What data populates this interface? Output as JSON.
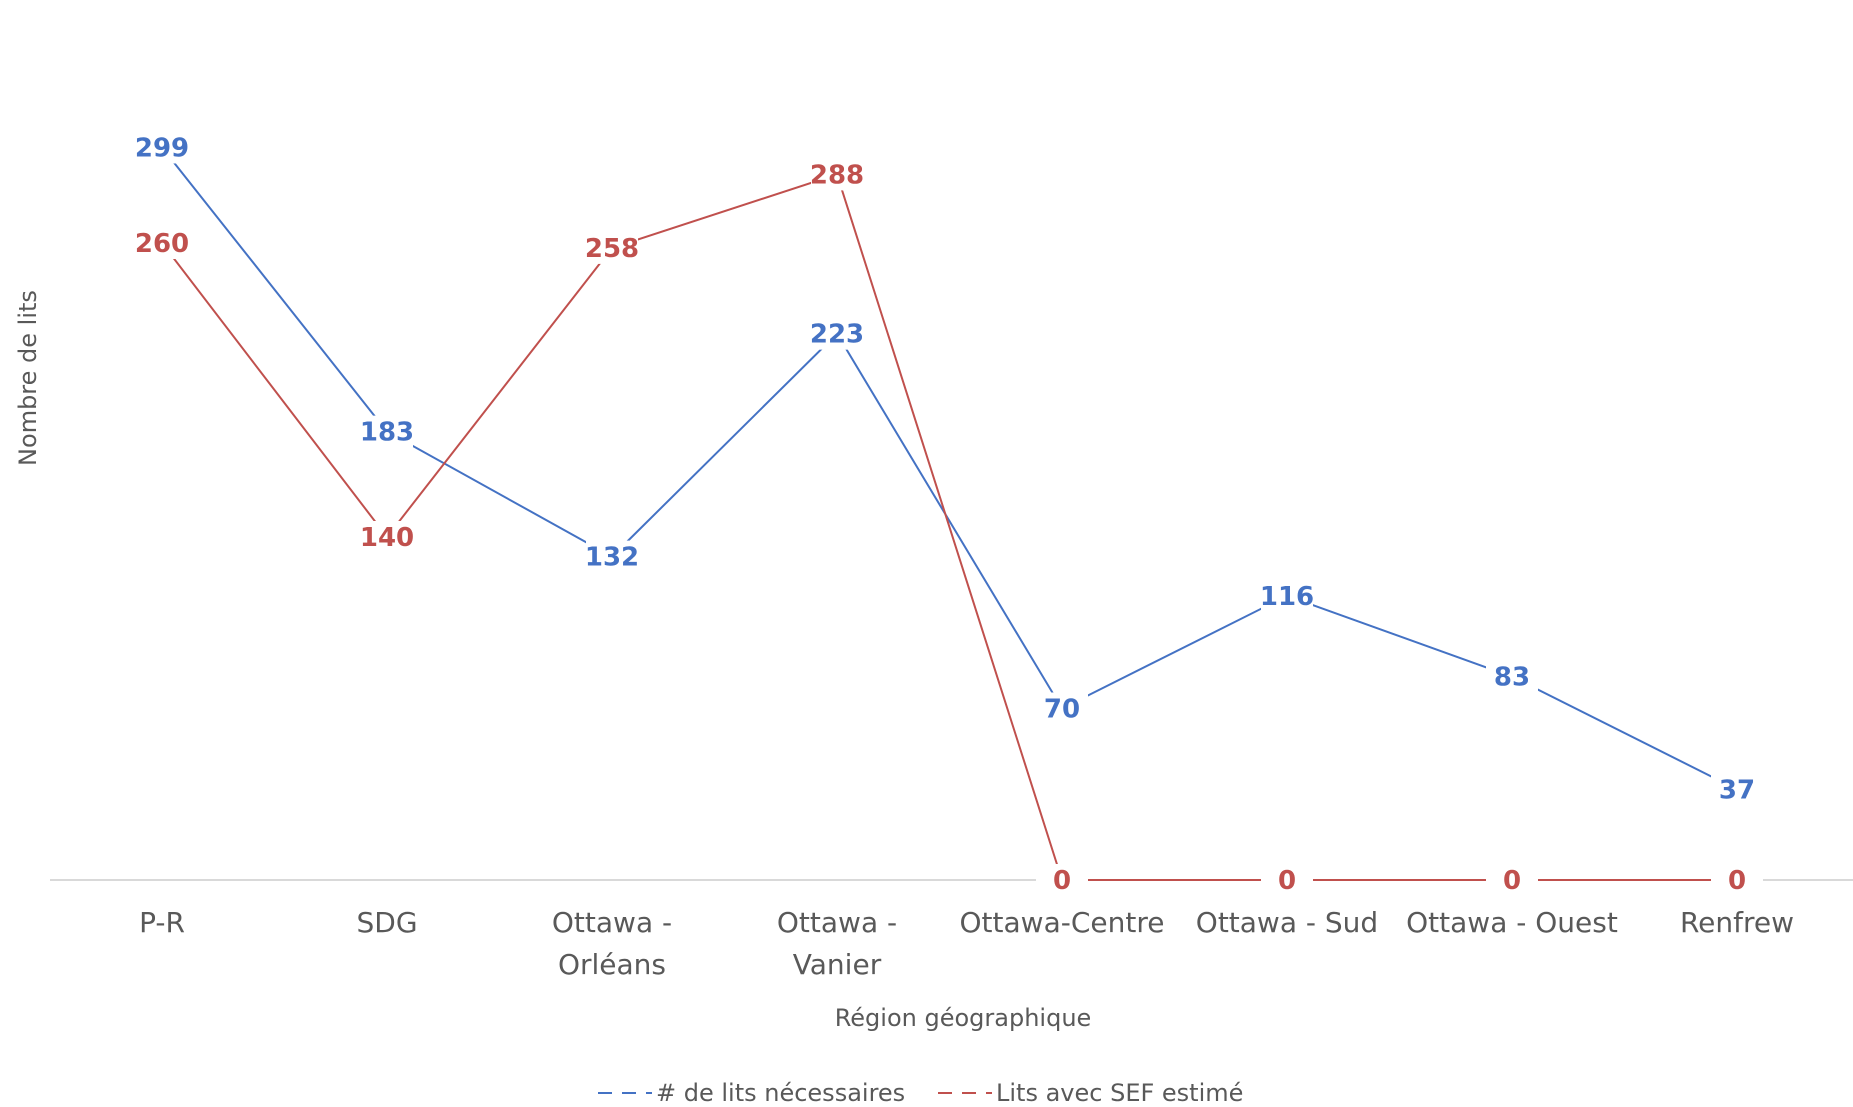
{
  "chart_data": {
    "type": "line",
    "categories": [
      "P-R",
      "SDG",
      "Ottawa - Orléans",
      "Ottawa - Vanier",
      "Ottawa-Centre",
      "Ottawa - Sud",
      "Ottawa - Ouest",
      "Renfrew"
    ],
    "category_lines": [
      [
        "P-R"
      ],
      [
        "SDG"
      ],
      [
        "Ottawa -",
        "Orléans"
      ],
      [
        "Ottawa -",
        "Vanier"
      ],
      [
        "Ottawa-Centre"
      ],
      [
        "Ottawa - Sud"
      ],
      [
        "Ottawa - Ouest"
      ],
      [
        "Renfrew"
      ]
    ],
    "series": [
      {
        "name": "# de lits nécessaires",
        "color": "#4472C4",
        "values": [
          299,
          183,
          132,
          223,
          70,
          116,
          83,
          37
        ]
      },
      {
        "name": "Lits avec SEF estimé",
        "color": "#C0504D",
        "values": [
          260,
          140,
          258,
          288,
          0,
          0,
          0,
          0
        ]
      }
    ],
    "xlabel": "Région géographique",
    "ylabel": "Nombre de lits",
    "ylim": [
      0,
      310
    ],
    "grid": false,
    "legend_position": "bottom",
    "data_labels": true,
    "axis_color": "#d9d9d9"
  }
}
